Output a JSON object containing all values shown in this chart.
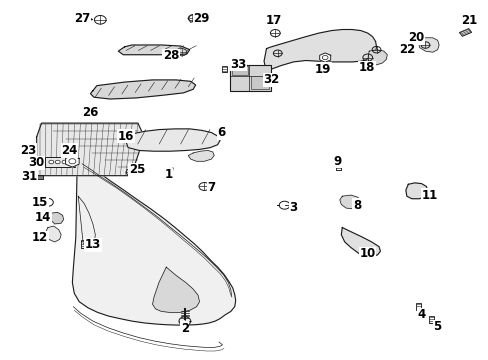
{
  "background_color": "#ffffff",
  "figsize": [
    4.89,
    3.6
  ],
  "dpi": 100,
  "line_color": "#1a1a1a",
  "label_fontsize": 8.5,
  "label_color": "#000000",
  "parts_labels": {
    "1": [
      0.345,
      0.515,
      0.358,
      0.542
    ],
    "2": [
      0.378,
      0.088,
      0.378,
      0.108
    ],
    "3": [
      0.6,
      0.425,
      0.584,
      0.427
    ],
    "4": [
      0.862,
      0.125,
      0.853,
      0.143
    ],
    "5": [
      0.895,
      0.092,
      0.882,
      0.108
    ],
    "6": [
      0.453,
      0.632,
      0.45,
      0.62
    ],
    "7": [
      0.432,
      0.48,
      0.42,
      0.483
    ],
    "8": [
      0.73,
      0.43,
      0.718,
      0.43
    ],
    "9": [
      0.69,
      0.552,
      0.692,
      0.54
    ],
    "10": [
      0.752,
      0.295,
      0.752,
      0.323
    ],
    "11": [
      0.878,
      0.458,
      0.862,
      0.453
    ],
    "12": [
      0.082,
      0.34,
      0.098,
      0.348
    ],
    "13": [
      0.19,
      0.32,
      0.175,
      0.327
    ],
    "14": [
      0.088,
      0.396,
      0.104,
      0.4
    ],
    "15": [
      0.082,
      0.437,
      0.097,
      0.437
    ],
    "16": [
      0.258,
      0.622,
      0.262,
      0.612
    ],
    "17": [
      0.56,
      0.942,
      0.563,
      0.918
    ],
    "18": [
      0.75,
      0.812,
      0.752,
      0.832
    ],
    "19": [
      0.66,
      0.808,
      0.663,
      0.828
    ],
    "20": [
      0.852,
      0.895,
      0.862,
      0.878
    ],
    "21": [
      0.96,
      0.942,
      0.955,
      0.922
    ],
    "22": [
      0.832,
      0.862,
      0.838,
      0.872
    ],
    "23": [
      0.058,
      0.582,
      0.072,
      0.582
    ],
    "24": [
      0.142,
      0.582,
      0.148,
      0.56
    ],
    "25": [
      0.28,
      0.528,
      0.272,
      0.535
    ],
    "26": [
      0.185,
      0.688,
      0.2,
      0.705
    ],
    "27": [
      0.168,
      0.948,
      0.197,
      0.945
    ],
    "28": [
      0.35,
      0.845,
      0.365,
      0.835
    ],
    "29": [
      0.412,
      0.948,
      0.395,
      0.942
    ],
    "30": [
      0.075,
      0.548,
      0.09,
      0.545
    ],
    "31": [
      0.06,
      0.51,
      0.075,
      0.51
    ],
    "32": [
      0.555,
      0.778,
      0.57,
      0.778
    ],
    "33": [
      0.488,
      0.822,
      0.492,
      0.808
    ]
  }
}
